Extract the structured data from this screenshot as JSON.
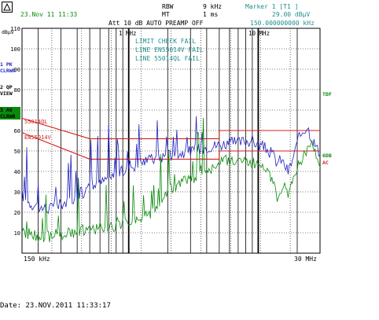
{
  "header": {
    "date_time": "23.Nov 11 11:33",
    "rbw_label": "RBW",
    "rbw_value": "9 kHz",
    "mt_label": "MT",
    "mt_value": "1 ms",
    "att_text": "Att 10 dB AUTO  PREAMP OFF",
    "marker_label": "Marker 1 [T1 ]",
    "marker_level": "29.00 dBµV",
    "marker_freq": "150.000000000 kHz",
    "unit": "dBµV"
  },
  "side_buttons": [
    {
      "line1": "1 PK",
      "line2": "CLRWR"
    },
    {
      "line1": "2 QP",
      "line2": "VIEW"
    },
    {
      "line1": "3 AV",
      "line2": "CLRWR"
    }
  ],
  "right_labels": {
    "tdf": "TDF",
    "ldb": "6DB",
    "ac": "AC"
  },
  "limit_check": {
    "title": "LIMIT CHECK   FAIL",
    "line1": "LINE EN55014V  FAIL",
    "line2": "LINE 55014QL  FAIL"
  },
  "limit_labels": {
    "qp": "55014QL",
    "av": "EN55014V"
  },
  "freq_markers": [
    "1 MHz",
    "10 MHz"
  ],
  "colors": {
    "pk": "#2020c0",
    "av": "#0a8a0a",
    "limit": "#d02020",
    "grid": "#000000"
  },
  "footer": {
    "date": "Date: 23.NOV.2011  11:33:17"
  },
  "chart_data": {
    "type": "line",
    "xlabel": "",
    "ylabel": "dBµV",
    "x_scale": "log",
    "xlim": [
      0.15,
      30
    ],
    "ylim": [
      0,
      110
    ],
    "x_tick_labels": [
      "150 kHz",
      "30 MHz"
    ],
    "y_ticks": [
      110,
      100,
      90,
      80,
      70,
      60,
      50,
      40,
      30,
      20,
      10
    ],
    "grid": true,
    "series": [
      {
        "name": "55014QL",
        "x": [
          0.15,
          0.5,
          5,
          30
        ],
        "y": [
          66,
          56,
          56,
          60
        ]
      },
      {
        "name": "EN55014V",
        "x": [
          0.15,
          0.5,
          5,
          30
        ],
        "y": [
          59,
          46,
          46,
          50
        ]
      },
      {
        "name": "1 PK",
        "x": [
          0.15,
          0.16,
          0.18,
          0.2,
          0.22,
          0.25,
          0.28,
          0.3,
          0.35,
          0.4,
          0.45,
          0.5,
          0.6,
          0.7,
          0.8,
          0.9,
          1,
          1.2,
          1.5,
          1.8,
          2,
          2.5,
          3,
          4,
          5,
          6,
          7,
          8,
          9,
          10,
          11,
          12,
          13,
          14,
          15,
          16,
          17,
          18,
          19,
          20,
          22,
          24,
          26,
          28,
          30
        ],
        "y": [
          29,
          26,
          24,
          23,
          22,
          22,
          23,
          24,
          26,
          28,
          30,
          32,
          34,
          37,
          38,
          40,
          42,
          44,
          46,
          47,
          48,
          49,
          50,
          52,
          53,
          54,
          54,
          55,
          55,
          53,
          52,
          50,
          48,
          44,
          46,
          43,
          40,
          44,
          48,
          54,
          60,
          62,
          56,
          52,
          48
        ]
      },
      {
        "name": "3 AV",
        "x": [
          0.15,
          0.16,
          0.18,
          0.2,
          0.22,
          0.25,
          0.28,
          0.3,
          0.35,
          0.4,
          0.45,
          0.5,
          0.6,
          0.7,
          0.8,
          0.9,
          1,
          1.2,
          1.5,
          1.8,
          2,
          2.5,
          3,
          4,
          5,
          6,
          7,
          8,
          9,
          10,
          11,
          12,
          13,
          14,
          15,
          16,
          17,
          18,
          19,
          20,
          22,
          24,
          26,
          28,
          30
        ],
        "y": [
          12,
          10,
          9,
          8,
          8,
          8,
          9,
          9,
          10,
          10,
          11,
          11,
          12,
          12,
          13,
          14,
          15,
          17,
          20,
          24,
          30,
          34,
          36,
          40,
          44,
          46,
          45,
          46,
          44,
          43,
          41,
          38,
          34,
          28,
          32,
          36,
          30,
          34,
          38,
          42,
          46,
          50,
          54,
          48,
          42
        ]
      }
    ]
  }
}
